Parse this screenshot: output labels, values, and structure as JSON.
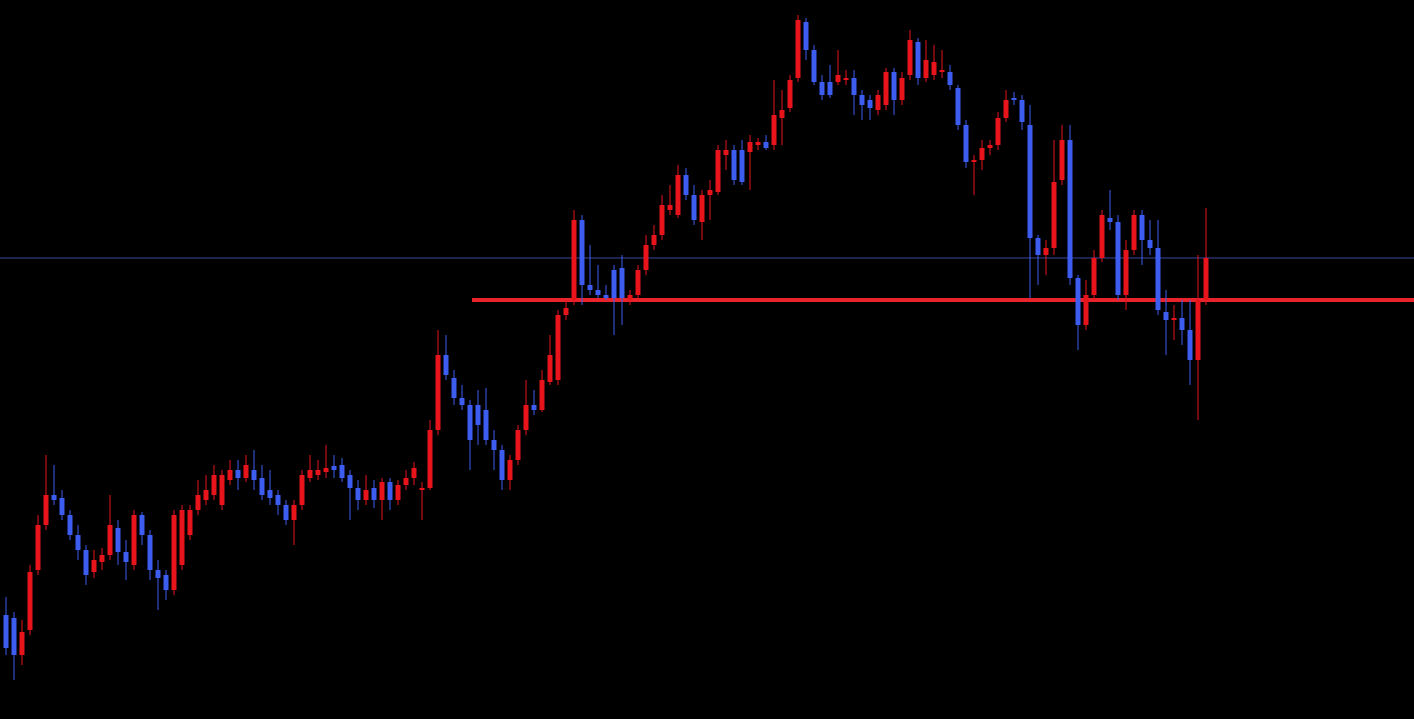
{
  "chart_data": {
    "type": "candlestick",
    "up_color": "#e8141c",
    "down_color": "#3d5cf0",
    "ylim": [
      0,
      719
    ],
    "open": [
      104,
      101,
      64,
      89,
      149,
      194,
      224,
      221,
      204,
      184,
      169,
      147,
      157,
      164,
      191,
      167,
      154,
      204,
      184,
      149,
      144,
      129,
      154,
      184,
      209,
      219,
      224,
      214,
      239,
      249,
      241,
      249,
      241,
      229,
      224,
      214,
      199,
      214,
      241,
      244,
      247,
      253,
      254,
      244,
      231,
      219,
      231,
      219,
      237,
      219,
      234,
      241,
      229,
      231,
      289,
      364,
      341,
      321,
      314,
      314,
      309,
      279,
      269,
      239,
      259,
      289,
      314,
      309,
      337,
      339,
      404,
      419,
      499,
      434,
      429,
      424,
      449,
      451,
      419,
      424,
      449,
      474,
      484,
      509,
      504,
      544,
      524,
      497,
      524,
      527,
      564,
      569,
      569,
      567,
      574,
      577,
      574,
      601,
      611,
      641,
      697,
      669,
      637,
      637,
      637,
      639,
      641,
      624,
      619,
      609,
      614,
      647,
      619,
      644,
      677,
      641,
      644,
      647,
      647,
      631,
      594,
      557,
      559,
      571,
      574,
      601,
      621,
      619,
      594,
      481,
      464,
      471,
      539,
      579,
      441,
      394,
      424,
      461,
      501,
      497,
      424,
      469,
      504,
      479,
      471,
      407,
      399,
      401,
      389,
      359,
      419
    ],
    "high": [
      122,
      107,
      99,
      154,
      204,
      264,
      254,
      229,
      209,
      194,
      174,
      169,
      171,
      224,
      199,
      179,
      209,
      207,
      189,
      159,
      149,
      209,
      214,
      214,
      239,
      244,
      254,
      249,
      259,
      259,
      264,
      269,
      254,
      249,
      229,
      219,
      219,
      249,
      264,
      259,
      274,
      264,
      261,
      249,
      239,
      244,
      239,
      241,
      241,
      239,
      249,
      257,
      237,
      299,
      389,
      384,
      349,
      334,
      319,
      329,
      331,
      289,
      274,
      264,
      294,
      339,
      329,
      349,
      384,
      409,
      419,
      509,
      504,
      474,
      454,
      434,
      454,
      464,
      429,
      454,
      484,
      494,
      524,
      534,
      554,
      551,
      534,
      529,
      539,
      574,
      579,
      574,
      579,
      584,
      581,
      584,
      639,
      629,
      644,
      704,
      701,
      674,
      644,
      654,
      669,
      649,
      649,
      629,
      624,
      629,
      651,
      651,
      647,
      689,
      681,
      679,
      674,
      669,
      654,
      634,
      599,
      564,
      579,
      579,
      607,
      629,
      627,
      624,
      614,
      484,
      479,
      579,
      594,
      594,
      444,
      439,
      469,
      509,
      529,
      504,
      479,
      509,
      509,
      499,
      499,
      429,
      414,
      419,
      419,
      464,
      511
    ],
    "low": [
      64,
      39,
      54,
      84,
      144,
      189,
      214,
      199,
      179,
      159,
      134,
      141,
      149,
      159,
      154,
      139,
      149,
      174,
      139,
      109,
      119,
      124,
      149,
      179,
      204,
      214,
      219,
      209,
      234,
      229,
      237,
      229,
      219,
      214,
      204,
      194,
      174,
      209,
      237,
      239,
      241,
      241,
      237,
      199,
      209,
      214,
      211,
      199,
      209,
      214,
      229,
      234,
      199,
      229,
      284,
      339,
      314,
      309,
      249,
      274,
      274,
      249,
      229,
      229,
      254,
      284,
      304,
      307,
      334,
      334,
      399,
      414,
      414,
      424,
      421,
      419,
      384,
      394,
      414,
      419,
      444,
      469,
      479,
      504,
      501,
      519,
      494,
      479,
      499,
      524,
      549,
      534,
      534,
      529,
      569,
      569,
      569,
      574,
      607,
      637,
      659,
      634,
      619,
      621,
      634,
      634,
      604,
      599,
      599,
      604,
      609,
      604,
      614,
      639,
      634,
      637,
      639,
      641,
      629,
      589,
      551,
      524,
      549,
      564,
      569,
      597,
      614,
      589,
      421,
      434,
      444,
      464,
      534,
      434,
      369,
      389,
      419,
      457,
      489,
      419,
      409,
      464,
      454,
      464,
      404,
      364,
      379,
      374,
      334,
      299,
      414
    ],
    "close": [
      71,
      64,
      87,
      147,
      194,
      224,
      219,
      204,
      184,
      169,
      144,
      159,
      164,
      194,
      167,
      157,
      204,
      184,
      149,
      141,
      129,
      204,
      209,
      209,
      224,
      229,
      244,
      244,
      249,
      241,
      254,
      239,
      224,
      221,
      214,
      199,
      214,
      244,
      249,
      249,
      251,
      249,
      241,
      231,
      219,
      229,
      219,
      237,
      219,
      234,
      241,
      251,
      231,
      289,
      364,
      344,
      321,
      314,
      279,
      294,
      279,
      269,
      239,
      259,
      289,
      314,
      309,
      339,
      364,
      404,
      411,
      499,
      434,
      429,
      424,
      421,
      421,
      421,
      424,
      449,
      474,
      484,
      514,
      514,
      544,
      524,
      499,
      524,
      529,
      569,
      569,
      539,
      537,
      577,
      577,
      571,
      604,
      609,
      639,
      699,
      669,
      637,
      624,
      624,
      644,
      641,
      624,
      614,
      611,
      624,
      647,
      619,
      641,
      679,
      641,
      659,
      657,
      649,
      634,
      594,
      557,
      559,
      571,
      574,
      601,
      619,
      619,
      597,
      481,
      464,
      471,
      537,
      579,
      441,
      394,
      424,
      461,
      504,
      497,
      424,
      469,
      504,
      479,
      471,
      409,
      399,
      401,
      389,
      359,
      419,
      461
    ],
    "levels": [
      {
        "value": 461,
        "color": "#3a4a9c"
      },
      {
        "value": 419,
        "color": "#e8232b"
      }
    ]
  }
}
